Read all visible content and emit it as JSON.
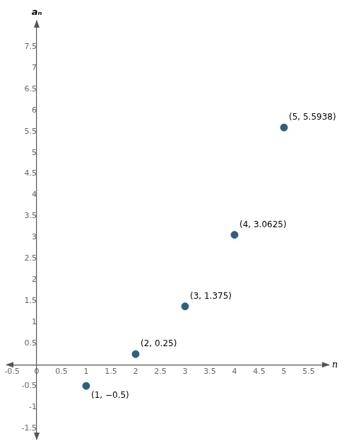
{
  "chart_data": {
    "type": "scatter",
    "x_label": "n",
    "y_label": "aₙ",
    "x": [
      1,
      2,
      3,
      4,
      5
    ],
    "values": [
      -0.5,
      0.25,
      1.375,
      3.0625,
      5.5938
    ],
    "value_labels": [
      "(1, −0.5)",
      "(2, 0.25)",
      "(3, 1.375)",
      "(4, 3.0625)",
      "(5, 5.5938)"
    ],
    "data_labels": true,
    "color": "#2e5f7e",
    "xlim": [
      -0.6,
      5.9
    ],
    "ylim": [
      -1.75,
      8.1
    ],
    "xticks": [
      -0.5,
      0,
      0.5,
      1,
      1.5,
      2,
      2.5,
      3,
      3.5,
      4,
      4.5,
      5,
      5.5
    ],
    "yticks": [
      -1.5,
      -1,
      -0.5,
      0.5,
      1,
      1.5,
      2,
      2.5,
      3,
      3.5,
      4,
      4.5,
      5,
      5.5,
      6,
      6.5,
      7,
      7.5
    ],
    "grid": false
  }
}
